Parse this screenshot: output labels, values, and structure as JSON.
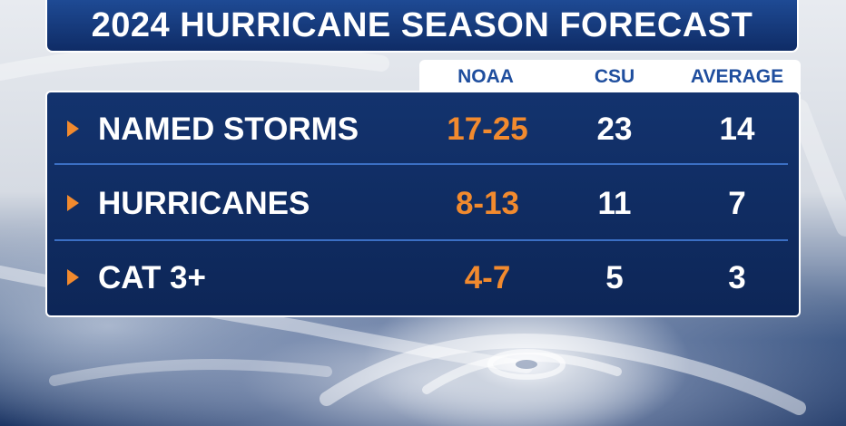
{
  "title": "2024 HURRICANE SEASON FORECAST",
  "columns": [
    "NOAA",
    "CSU",
    "AVERAGE"
  ],
  "rows": [
    {
      "label": "NAMED STORMS",
      "noaa": "17-25",
      "csu": "23",
      "average": "14"
    },
    {
      "label": "HURRICANES",
      "noaa": "8-13",
      "csu": "11",
      "average": "7"
    },
    {
      "label": "CAT 3+",
      "noaa": "4-7",
      "csu": "5",
      "average": "3"
    }
  ],
  "colors": {
    "accent": "#f28a2e",
    "panel": "#13336e",
    "header_text": "#1f4e9e",
    "divider": "#3b6fc4"
  },
  "icons": {
    "row_marker": "triangle-right-icon"
  }
}
